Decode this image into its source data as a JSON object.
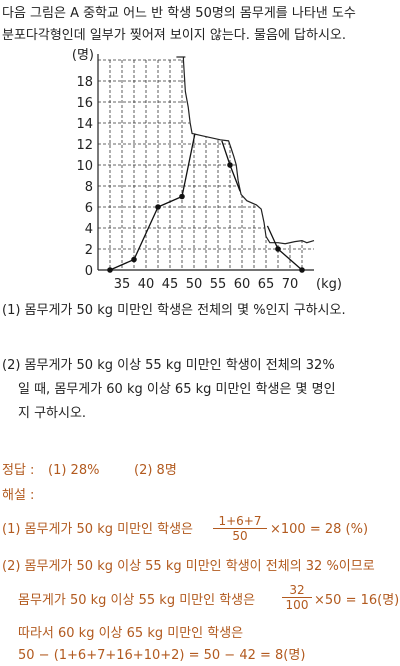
{
  "intro": {
    "line1": "다음 그림은 A 중학교 어느 반 학생 50명의 몸무게를 나타낸 도수",
    "line2": "분포다각형인데 일부가 찢어져 보이지 않는다. 물음에 답하시오."
  },
  "chart_data": {
    "type": "line",
    "ylabel": "(명)",
    "xlabel": "(kg)",
    "x_ticks": [
      "35",
      "40",
      "45",
      "50",
      "55",
      "60",
      "65",
      "70"
    ],
    "y_ticks": [
      "0",
      "2",
      "4",
      "6",
      "8",
      "10",
      "12",
      "14",
      "16",
      "18"
    ],
    "xlim": [
      30,
      75
    ],
    "ylim": [
      0,
      20
    ],
    "points_visible": [
      {
        "x": 32.5,
        "y": 0
      },
      {
        "x": 37.5,
        "y": 1
      },
      {
        "x": 42.5,
        "y": 6
      },
      {
        "x": 47.5,
        "y": 7
      },
      {
        "x": 57.5,
        "y": 10
      },
      {
        "x": 67.5,
        "y": 2
      },
      {
        "x": 72.5,
        "y": 0
      }
    ],
    "torn": true,
    "grid": true
  },
  "questions": {
    "q1": "(1) 몸무게가 50 kg 미만인 학생은 전체의 몇 %인지 구하시오.",
    "q2_line1": "(2) 몸무게가 50 kg 이상 55 kg 미만인 학생이 전체의 32%",
    "q2_line2": "일 때, 몸무게가 60 kg 이상 65 kg 미만인 학생은 몇 명인",
    "q2_line3": "지 구하시오."
  },
  "answer": {
    "label": "정답 :",
    "a1": "(1) 28%",
    "a2": "(2) 8명",
    "explain_label": "해설 :",
    "s1_text": "(1) 몸무게가 50 kg 미만인 학생은",
    "s1_num": "1+6+7",
    "s1_den": "50",
    "s1_tail": "×100 = 28 (%)",
    "s2_text": "(2) 몸무게가 50 kg 이상 55 kg 미만인 학생이 전체의 32 %이므로",
    "s3_text": "몸무게가 50 kg 이상 55 kg 미만인 학생은",
    "s3_num": "32",
    "s3_den": "100",
    "s3_tail": "×50 = 16(명)",
    "s4_text": "따라서 60 kg 이상 65 kg 미만인 학생은",
    "s5_text": "50 − (1+6+7+16+10+2) = 50 − 42 = 8(명)"
  }
}
